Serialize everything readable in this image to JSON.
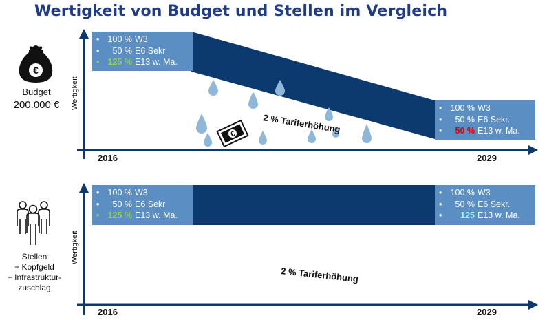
{
  "title": "Wertigkeit von Budget und Stellen im Vergleich",
  "colors": {
    "dark_blue": "#0d3a6e",
    "box_blue": "#5b8ec3",
    "drop_blue": "#8fb7d9",
    "green": "#92d050",
    "red": "#e00000",
    "cyan": "#9ff5f0"
  },
  "budget_panel": {
    "side_label": "Budget",
    "side_amount": "200.000 €",
    "icon": "money-bag-icon",
    "axis_label": "Wertigkeit",
    "year_start": "2016",
    "year_end": "2029",
    "tariff_label": "2 % Tariferhöhung",
    "start_box": [
      {
        "bullet": "•",
        "pct": "100 %",
        "text": "W3"
      },
      {
        "bullet": "•",
        "pct": "50 %",
        "text": "E6 Sekr"
      },
      {
        "bullet": "•",
        "pct": "125 %",
        "text": "E13 w. Ma."
      }
    ],
    "end_box": [
      {
        "bullet": "•",
        "pct": "100 %",
        "text": "W3"
      },
      {
        "bullet": "•",
        "pct": "50 %",
        "text": "E6 Sekr."
      },
      {
        "bullet": "•",
        "pct": "50 %",
        "text": "E13 w. Ma."
      }
    ]
  },
  "stellen_panel": {
    "side_lines": [
      "Stellen",
      "+ Kopfgeld",
      "+ Infrastruktur-",
      "zuschlag"
    ],
    "icon": "people-group-icon",
    "axis_label": "Wertigkeit",
    "year_start": "2016",
    "year_end": "2029",
    "tariff_label": "2 % Tariferhöhung",
    "start_box": [
      {
        "bullet": "•",
        "pct": "100 %",
        "text": "W3"
      },
      {
        "bullet": "•",
        "pct": "50 %",
        "text": "E6 Sekr"
      },
      {
        "bullet": "•",
        "pct": "125 %",
        "text": "E13 w. Ma."
      }
    ],
    "end_box": [
      {
        "bullet": "•",
        "pct": "100 %",
        "text": "W3"
      },
      {
        "bullet": "•",
        "pct": "50 %",
        "text": "E6 Sekr."
      },
      {
        "bullet": "•",
        "pct": "125",
        "text": "E13 w. Ma."
      }
    ]
  }
}
